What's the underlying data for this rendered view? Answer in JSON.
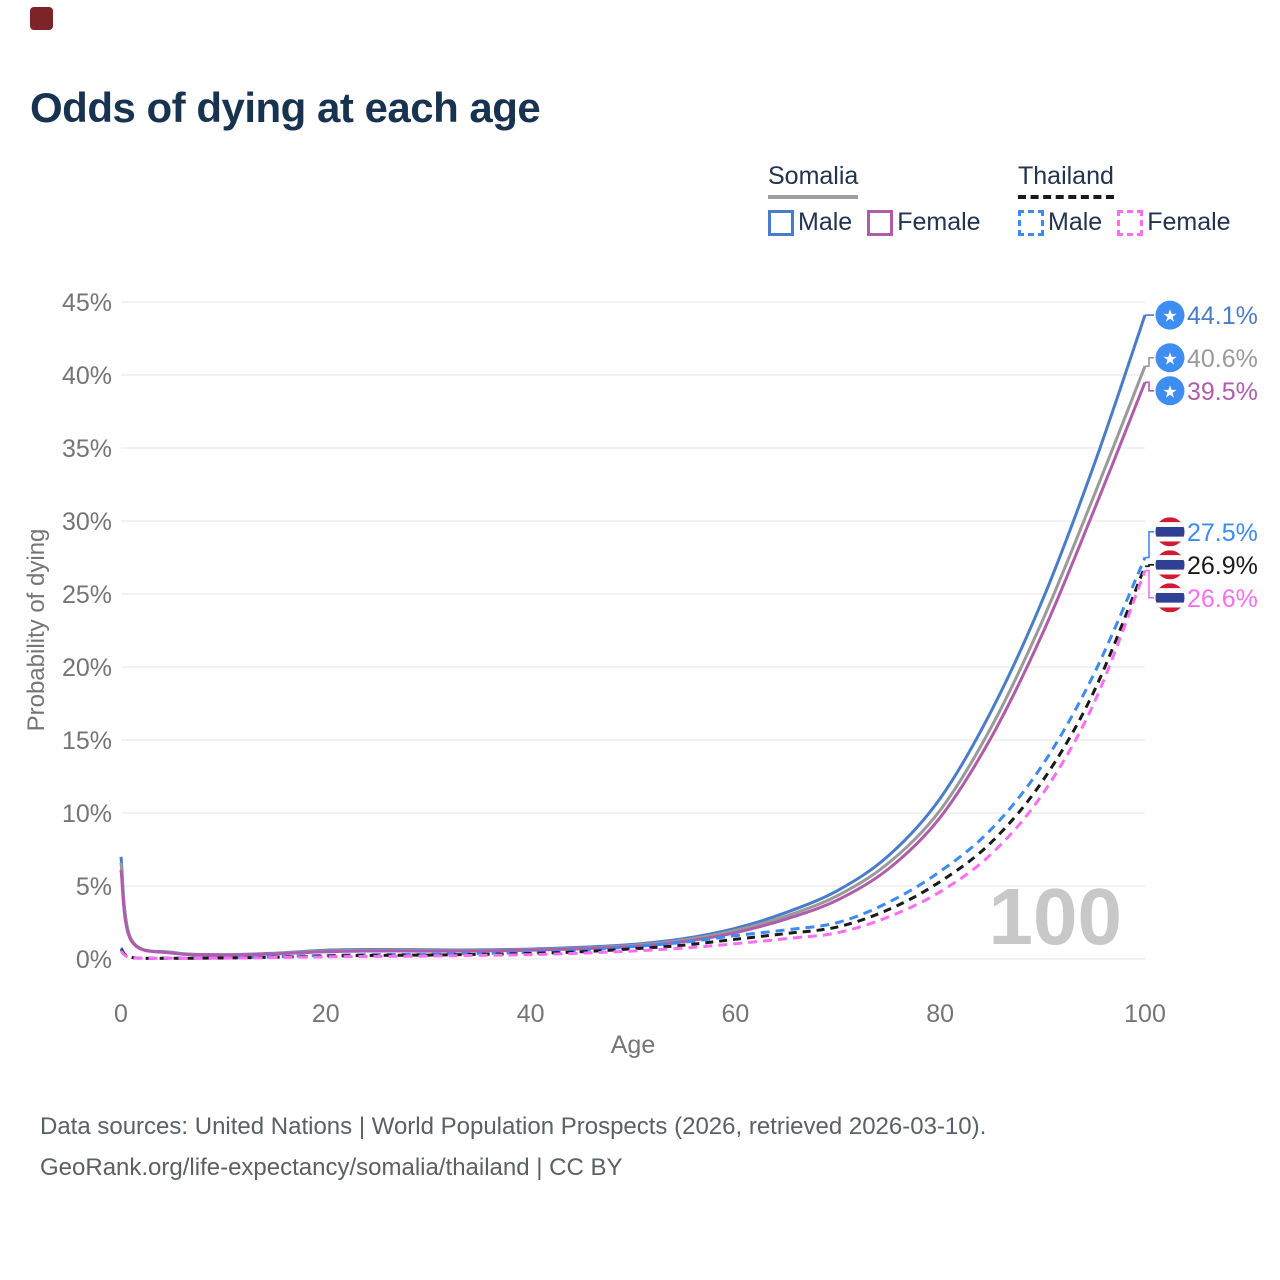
{
  "brand": {
    "mark_color": "#7d2429"
  },
  "title": "Odds of dying at each age",
  "legend": {
    "groups": [
      {
        "name": "Somalia",
        "line_style": "solid",
        "underline_color": "#9e9e9e",
        "items": [
          {
            "label": "Male",
            "color": "#4a7dc9"
          },
          {
            "label": "Female",
            "color": "#b05cab"
          }
        ]
      },
      {
        "name": "Thailand",
        "line_style": "dashed",
        "underline_color": "#1a1a1a",
        "items": [
          {
            "label": "Male",
            "color": "#3d8af7"
          },
          {
            "label": "Female",
            "color": "#fb6ef2"
          }
        ]
      }
    ]
  },
  "chart_data": {
    "type": "line",
    "title": "Odds of dying at each age",
    "xlabel": "Age",
    "ylabel": "Probability of dying",
    "xlim": [
      0,
      100
    ],
    "ylim": [
      0,
      45
    ],
    "xticks": [
      0,
      20,
      40,
      60,
      80,
      100
    ],
    "ytick_step": 5,
    "ytick_suffix": "%",
    "grid": true,
    "legend_position": "top-right",
    "hover_age_watermark": "100",
    "watermark_color": "#c8c8c8",
    "axis_text_color": "#757575",
    "gridline_color": "#ebebeb",
    "x": [
      0,
      1,
      5,
      10,
      15,
      20,
      25,
      30,
      35,
      40,
      45,
      50,
      55,
      60,
      65,
      70,
      75,
      80,
      85,
      90,
      95,
      100
    ],
    "series": [
      {
        "name": "Somalia Male",
        "country": "Somalia",
        "sex": "Male",
        "color": "#4a7dc9",
        "dash": null,
        "flag": "somalia",
        "end_label": "44.1%",
        "values": [
          7.0,
          1.35,
          0.45,
          0.3,
          0.4,
          0.6,
          0.65,
          0.63,
          0.62,
          0.68,
          0.8,
          1.0,
          1.4,
          2.1,
          3.2,
          4.7,
          7.1,
          11.0,
          17.0,
          24.6,
          33.8,
          44.1
        ]
      },
      {
        "name": "Somalia",
        "country": "Somalia",
        "sex": "Both sexes",
        "color": "#9a9a9a",
        "dash": null,
        "flag": "somalia",
        "end_label": "40.6%",
        "values": [
          6.6,
          1.3,
          0.42,
          0.28,
          0.37,
          0.55,
          0.6,
          0.58,
          0.58,
          0.63,
          0.74,
          0.93,
          1.3,
          1.95,
          2.95,
          4.35,
          6.6,
          10.2,
          15.9,
          23.2,
          31.7,
          40.6
        ]
      },
      {
        "name": "Somalia Female",
        "country": "Somalia",
        "sex": "Female",
        "color": "#b05cab",
        "dash": null,
        "flag": "somalia",
        "end_label": "39.5%",
        "values": [
          6.1,
          1.25,
          0.4,
          0.27,
          0.35,
          0.5,
          0.55,
          0.54,
          0.55,
          0.6,
          0.7,
          0.87,
          1.2,
          1.8,
          2.75,
          4.05,
          6.2,
          9.7,
          15.2,
          22.3,
          30.7,
          39.5
        ]
      },
      {
        "name": "Thailand Male",
        "country": "Thailand",
        "sex": "Male",
        "color": "#3d8af7",
        "dash": "9 6",
        "flag": "thailand",
        "end_label": "27.5%",
        "values": [
          0.75,
          0.12,
          0.06,
          0.08,
          0.15,
          0.25,
          0.3,
          0.32,
          0.38,
          0.45,
          0.6,
          0.85,
          1.15,
          1.6,
          2.0,
          2.5,
          3.9,
          6.0,
          8.9,
          13.3,
          19.5,
          27.5
        ]
      },
      {
        "name": "Thailand",
        "country": "Thailand",
        "sex": "Both sexes",
        "color": "#1a1a1a",
        "dash": "8 6",
        "flag": "thailand",
        "end_label": "26.9%",
        "values": [
          0.65,
          0.11,
          0.05,
          0.07,
          0.12,
          0.2,
          0.25,
          0.27,
          0.32,
          0.38,
          0.5,
          0.7,
          0.95,
          1.35,
          1.75,
          2.2,
          3.4,
          5.3,
          8.0,
          12.2,
          18.3,
          26.9
        ]
      },
      {
        "name": "Thailand Female",
        "country": "Thailand",
        "sex": "Female",
        "color": "#fb6ef2",
        "dash": "9 6",
        "flag": "thailand",
        "end_label": "26.6%",
        "values": [
          0.55,
          0.1,
          0.045,
          0.06,
          0.1,
          0.15,
          0.18,
          0.2,
          0.25,
          0.3,
          0.4,
          0.55,
          0.75,
          1.05,
          1.4,
          1.8,
          2.9,
          4.6,
          7.2,
          11.3,
          17.5,
          26.6
        ]
      }
    ],
    "flag_colors": {
      "somalia_blue": "#3e8ef1",
      "thailand_red": "#d01c32",
      "thailand_blue": "#2e3f94"
    }
  },
  "footer": {
    "line1": "Data sources: United Nations | World Population Prospects (2026, retrieved 2026-03-10).",
    "line2": "GeoRank.org/life-expectancy/somalia/thailand | CC BY"
  }
}
